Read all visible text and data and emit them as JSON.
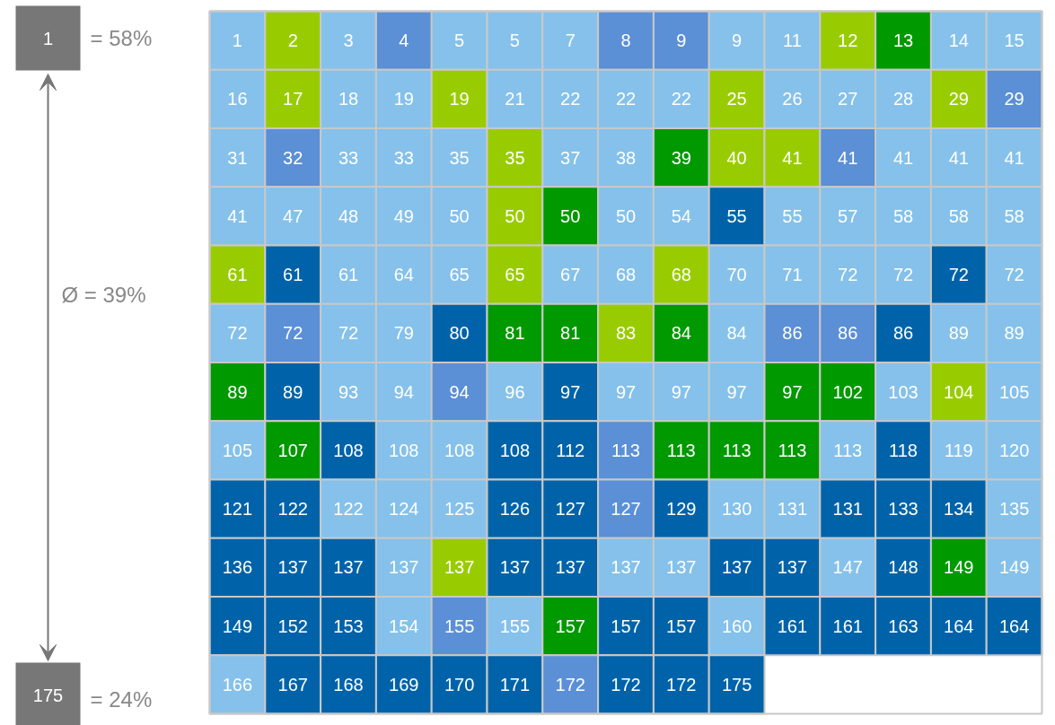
{
  "chart_data": {
    "type": "heatmap",
    "categories": [
      null,
      null,
      null,
      null,
      null,
      null,
      null,
      null,
      null,
      null,
      null,
      null,
      null,
      null,
      null
    ],
    "y_categories": [
      null,
      null,
      null,
      null,
      null,
      null,
      null,
      null,
      null,
      null,
      null,
      null
    ],
    "cells": [
      [
        1,
        2,
        3,
        4,
        5,
        5,
        7,
        8,
        9,
        9,
        11,
        12,
        13,
        14,
        15
      ],
      [
        16,
        17,
        18,
        19,
        19,
        21,
        22,
        22,
        22,
        25,
        26,
        27,
        28,
        29,
        29
      ],
      [
        31,
        32,
        33,
        33,
        35,
        35,
        37,
        38,
        39,
        40,
        41,
        41,
        41,
        41,
        41
      ],
      [
        41,
        47,
        48,
        49,
        50,
        50,
        50,
        50,
        54,
        55,
        55,
        57,
        58,
        58,
        58
      ],
      [
        61,
        61,
        61,
        64,
        65,
        65,
        67,
        68,
        68,
        70,
        71,
        72,
        72,
        72,
        72
      ],
      [
        72,
        72,
        72,
        79,
        80,
        81,
        81,
        83,
        84,
        84,
        86,
        86,
        86,
        89,
        89
      ],
      [
        89,
        89,
        93,
        94,
        94,
        96,
        97,
        97,
        97,
        97,
        97,
        102,
        103,
        104,
        105
      ],
      [
        105,
        107,
        108,
        108,
        108,
        108,
        112,
        113,
        113,
        113,
        113,
        113,
        118,
        119,
        120
      ],
      [
        121,
        122,
        122,
        124,
        125,
        126,
        127,
        127,
        129,
        130,
        131,
        131,
        133,
        134,
        135
      ],
      [
        136,
        137,
        137,
        137,
        137,
        137,
        137,
        137,
        137,
        137,
        137,
        147,
        148,
        149,
        149
      ],
      [
        149,
        152,
        153,
        154,
        155,
        155,
        157,
        157,
        157,
        160,
        161,
        161,
        163,
        164,
        164
      ],
      [
        166,
        167,
        168,
        169,
        170,
        171,
        172,
        172,
        172,
        175,
        null,
        null,
        null,
        null,
        null
      ]
    ],
    "colors": [
      [
        "#85c1ea",
        "#99cc00",
        "#85c1ea",
        "#5b8fd6",
        "#85c1ea",
        "#85c1ea",
        "#85c1ea",
        "#5b8fd6",
        "#5b8fd6",
        "#85c1ea",
        "#85c1ea",
        "#99cc00",
        "#009900",
        "#85c1ea",
        "#85c1ea"
      ],
      [
        "#85c1ea",
        "#99cc00",
        "#85c1ea",
        "#85c1ea",
        "#99cc00",
        "#85c1ea",
        "#85c1ea",
        "#85c1ea",
        "#85c1ea",
        "#99cc00",
        "#85c1ea",
        "#85c1ea",
        "#85c1ea",
        "#99cc00",
        "#5b8fd6"
      ],
      [
        "#85c1ea",
        "#5b8fd6",
        "#85c1ea",
        "#85c1ea",
        "#85c1ea",
        "#99cc00",
        "#85c1ea",
        "#85c1ea",
        "#009900",
        "#99cc00",
        "#99cc00",
        "#5b8fd6",
        "#85c1ea",
        "#85c1ea",
        "#85c1ea"
      ],
      [
        "#85c1ea",
        "#85c1ea",
        "#85c1ea",
        "#85c1ea",
        "#85c1ea",
        "#99cc00",
        "#009900",
        "#85c1ea",
        "#85c1ea",
        "#0063a9",
        "#85c1ea",
        "#85c1ea",
        "#85c1ea",
        "#85c1ea",
        "#85c1ea"
      ],
      [
        "#99cc00",
        "#0063a9",
        "#85c1ea",
        "#85c1ea",
        "#85c1ea",
        "#99cc00",
        "#85c1ea",
        "#85c1ea",
        "#99cc00",
        "#85c1ea",
        "#85c1ea",
        "#85c1ea",
        "#85c1ea",
        "#0063a9",
        "#85c1ea"
      ],
      [
        "#85c1ea",
        "#5b8fd6",
        "#85c1ea",
        "#85c1ea",
        "#0063a9",
        "#009900",
        "#009900",
        "#99cc00",
        "#009900",
        "#85c1ea",
        "#5b8fd6",
        "#5b8fd6",
        "#0063a9",
        "#85c1ea",
        "#85c1ea"
      ],
      [
        "#009900",
        "#0063a9",
        "#85c1ea",
        "#85c1ea",
        "#5b8fd6",
        "#85c1ea",
        "#0063a9",
        "#85c1ea",
        "#85c1ea",
        "#85c1ea",
        "#009900",
        "#009900",
        "#85c1ea",
        "#99cc00",
        "#85c1ea"
      ],
      [
        "#85c1ea",
        "#009900",
        "#0063a9",
        "#85c1ea",
        "#85c1ea",
        "#0063a9",
        "#0063a9",
        "#5b8fd6",
        "#009900",
        "#009900",
        "#009900",
        "#85c1ea",
        "#0063a9",
        "#85c1ea",
        "#85c1ea"
      ],
      [
        "#0063a9",
        "#0063a9",
        "#85c1ea",
        "#85c1ea",
        "#85c1ea",
        "#0063a9",
        "#0063a9",
        "#5b8fd6",
        "#0063a9",
        "#85c1ea",
        "#85c1ea",
        "#0063a9",
        "#0063a9",
        "#0063a9",
        "#85c1ea"
      ],
      [
        "#0063a9",
        "#0063a9",
        "#0063a9",
        "#85c1ea",
        "#99cc00",
        "#0063a9",
        "#0063a9",
        "#85c1ea",
        "#85c1ea",
        "#0063a9",
        "#0063a9",
        "#85c1ea",
        "#0063a9",
        "#009900",
        "#85c1ea"
      ],
      [
        "#0063a9",
        "#0063a9",
        "#0063a9",
        "#85c1ea",
        "#5b8fd6",
        "#85c1ea",
        "#009900",
        "#0063a9",
        "#0063a9",
        "#85c1ea",
        "#0063a9",
        "#0063a9",
        "#0063a9",
        "#0063a9",
        "#0063a9"
      ],
      [
        "#85c1ea",
        "#0063a9",
        "#0063a9",
        "#0063a9",
        "#0063a9",
        "#0063a9",
        "#5b8fd6",
        "#0063a9",
        "#0063a9",
        "#0063a9",
        null,
        null,
        null,
        null,
        null
      ]
    ],
    "data_labels": true,
    "annotations": [
      "1",
      "= 58%",
      "Ø = 39%",
      "175",
      "= 24%"
    ]
  }
}
